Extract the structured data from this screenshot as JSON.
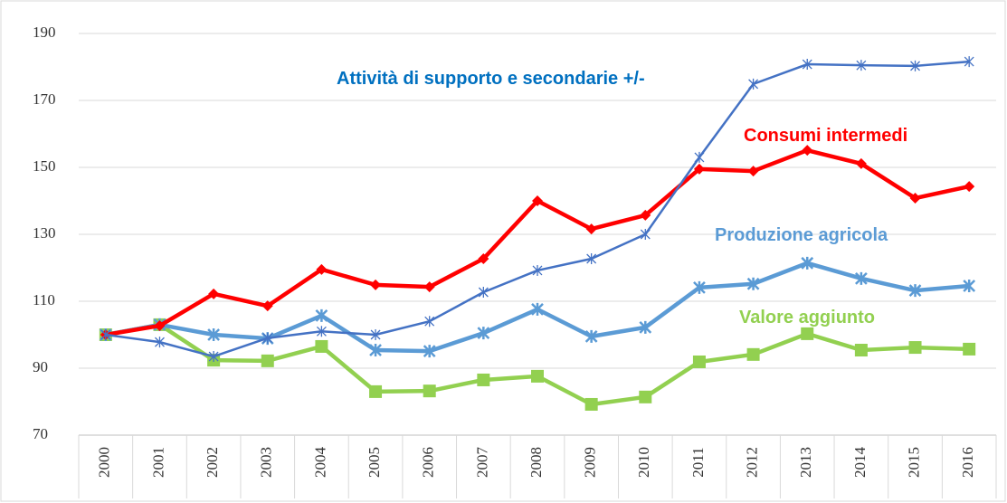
{
  "chart_data": {
    "type": "line",
    "categories": [
      "2000",
      "2001",
      "2002",
      "2003",
      "2004",
      "2005",
      "2006",
      "2007",
      "2008",
      "2009",
      "2010",
      "2011",
      "2012",
      "2013",
      "2014",
      "2015",
      "2016"
    ],
    "series": [
      {
        "name": "Attività di supporto e secondarie +/-",
        "color": "#4472c4",
        "label_color": "#0070c0",
        "marker": "asterisk",
        "values": [
          100,
          97.8,
          93.5,
          99,
          101,
          100,
          104,
          112.7,
          119.2,
          122.7,
          130,
          153,
          174.9,
          180.8,
          180.5,
          180.3,
          181.6
        ]
      },
      {
        "name": "Consumi intermedi",
        "color": "#ff0000",
        "label_color": "#ff0000",
        "marker": "diamond",
        "values": [
          100,
          102.7,
          112.2,
          108.6,
          119.5,
          114.9,
          114.3,
          122.7,
          140,
          131.6,
          135.7,
          149.5,
          148.9,
          155.1,
          151.1,
          140.8,
          144.3
        ]
      },
      {
        "name": "Produzione agricola",
        "color": "#5b9bd5",
        "label_color": "#5b9bd5",
        "marker": "x",
        "values": [
          100,
          103,
          100,
          98.9,
          105.7,
          95.4,
          95.1,
          100.5,
          107.6,
          99.5,
          102.2,
          114.1,
          115.2,
          121.4,
          116.8,
          113.2,
          114.6
        ]
      },
      {
        "name": "Valore aggiunto",
        "color": "#92d050",
        "label_color": "#92d050",
        "marker": "square",
        "values": [
          100,
          103,
          92.4,
          92.2,
          96.5,
          83,
          83.2,
          86.5,
          87.6,
          79.2,
          81.4,
          91.9,
          94.1,
          100.3,
          95.4,
          96.2,
          95.7
        ]
      }
    ],
    "ylim": [
      70,
      190
    ],
    "yticks": [
      70,
      90,
      110,
      130,
      150,
      170,
      190
    ],
    "grid": true
  }
}
